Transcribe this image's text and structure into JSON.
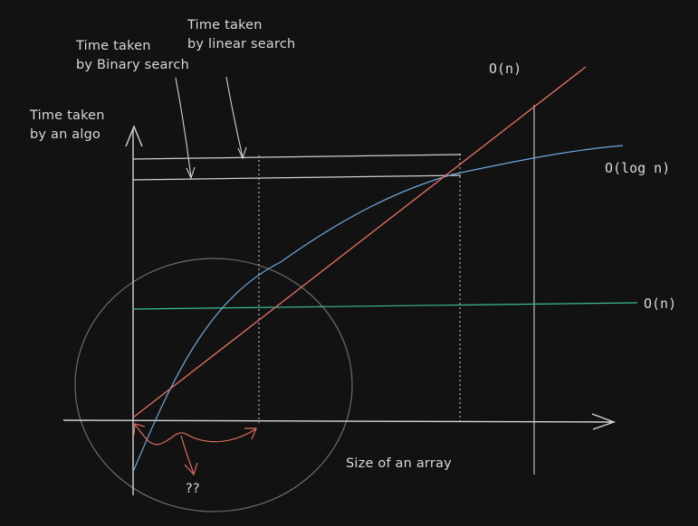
{
  "annotations": {
    "linear_search": [
      "Time taken",
      "by linear search"
    ],
    "binary_search": [
      "Time taken",
      "by Binary search"
    ],
    "y_axis_label": [
      "Time taken",
      "by an algo"
    ],
    "x_axis_label": "Size of an array",
    "question_marks": "??"
  },
  "curve_labels": {
    "linear": "O(n)",
    "logarithmic": "O(log n)",
    "constant": "O(n)"
  },
  "colors": {
    "background": "#121212",
    "axes": "#d6d6d6",
    "text": "#d8d8d8",
    "linear_curve": "#e06c5e",
    "log_curve": "#6fa8dc",
    "constant_curve": "#3cbf8f",
    "circle": "#6b6b6b",
    "arrows": "#e06c5e",
    "guides": "#cfcfcf"
  }
}
